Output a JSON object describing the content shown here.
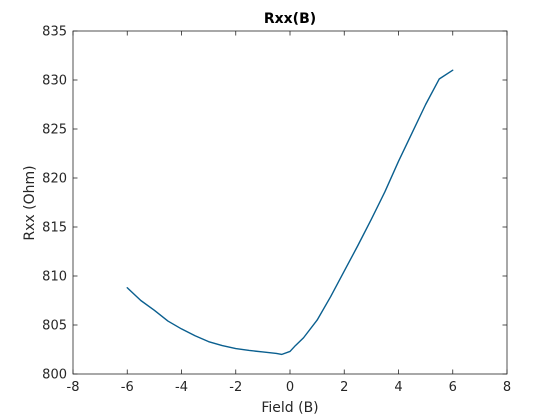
{
  "chart_data": {
    "type": "line",
    "title": "Rxx(B)",
    "xlabel": "Field (B)",
    "ylabel": "Rxx (Ohm)",
    "xlim": [
      -8,
      8
    ],
    "ylim": [
      800,
      835
    ],
    "xticks": [
      -8,
      -6,
      -4,
      -2,
      0,
      2,
      4,
      6,
      8
    ],
    "yticks": [
      800,
      805,
      810,
      815,
      820,
      825,
      830,
      835
    ],
    "xtick_labels": [
      "-8",
      "-6",
      "-4",
      "-2",
      "0",
      "2",
      "4",
      "6",
      "8"
    ],
    "ytick_labels": [
      "800",
      "805",
      "810",
      "815",
      "820",
      "825",
      "830",
      "835"
    ],
    "grid": false,
    "box": true,
    "line_color": "#0a5f8f",
    "series": [
      {
        "x": [
          -6.0,
          -5.5,
          -5.0,
          -4.5,
          -4.0,
          -3.5,
          -3.0,
          -2.5,
          -2.0,
          -1.5,
          -1.0,
          -0.5,
          -0.3,
          0.0,
          0.2,
          0.5,
          1.0,
          1.5,
          2.0,
          2.5,
          3.0,
          3.5,
          4.0,
          4.5,
          5.0,
          5.5,
          6.0
        ],
        "y": [
          808.8,
          807.5,
          806.5,
          805.4,
          804.6,
          803.9,
          803.3,
          802.9,
          802.6,
          802.4,
          802.25,
          802.1,
          802.0,
          802.3,
          802.9,
          803.7,
          805.5,
          807.9,
          810.5,
          813.1,
          815.8,
          818.6,
          821.7,
          824.6,
          827.5,
          830.1,
          831.0
        ]
      }
    ]
  }
}
